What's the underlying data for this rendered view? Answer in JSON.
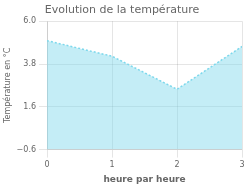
{
  "chart_data": {
    "type": "area",
    "title": "Evolution de la température",
    "xlabel": "heure par heure",
    "ylabel": "Température en °C",
    "x": [
      0,
      1,
      2,
      3
    ],
    "values": [
      5.0,
      4.2,
      2.5,
      4.7
    ],
    "color": "#7dd8ec",
    "line_style": "dotted",
    "xlim": [
      0,
      3
    ],
    "ylim": [
      -0.6,
      6.0
    ],
    "xticks": [
      0,
      1,
      2,
      3
    ],
    "yticks": [
      {
        "value": -0.6,
        "label": "−0.6"
      },
      {
        "value": 1.6,
        "label": "1.6"
      },
      {
        "value": 3.8,
        "label": "3.8"
      },
      {
        "value": 6.0,
        "label": "6.0"
      }
    ],
    "grid": true
  }
}
